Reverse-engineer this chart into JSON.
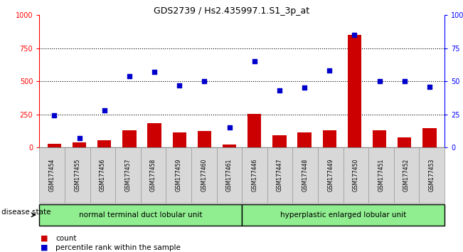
{
  "title": "GDS2739 / Hs2.435997.1.S1_3p_at",
  "samples": [
    "GSM177454",
    "GSM177455",
    "GSM177456",
    "GSM177457",
    "GSM177458",
    "GSM177459",
    "GSM177460",
    "GSM177461",
    "GSM177446",
    "GSM177447",
    "GSM177448",
    "GSM177449",
    "GSM177450",
    "GSM177451",
    "GSM177452",
    "GSM177453"
  ],
  "counts": [
    30,
    40,
    55,
    130,
    185,
    115,
    125,
    20,
    255,
    90,
    115,
    130,
    850,
    130,
    75,
    145
  ],
  "percentiles": [
    24,
    7,
    28,
    54,
    57,
    47,
    50,
    15,
    65,
    43,
    45,
    58,
    85,
    50,
    50,
    46
  ],
  "group1_label": "normal terminal duct lobular unit",
  "group2_label": "hyperplastic enlarged lobular unit",
  "group1_count": 8,
  "group2_count": 8,
  "disease_state_label": "disease state",
  "bar_color": "#cc0000",
  "dot_color": "#0000cc",
  "ylim_left": [
    0,
    1000
  ],
  "ylim_right": [
    0,
    100
  ],
  "yticks_left": [
    0,
    250,
    500,
    750,
    1000
  ],
  "yticks_right": [
    0,
    25,
    50,
    75,
    100
  ],
  "bg_color": "#ffffff",
  "group_color": "#90ee90",
  "legend_count_label": "count",
  "legend_pct_label": "percentile rank within the sample",
  "title_fontsize": 9,
  "tick_fontsize": 7,
  "sample_fontsize": 5.5,
  "label_fontsize": 7.5
}
